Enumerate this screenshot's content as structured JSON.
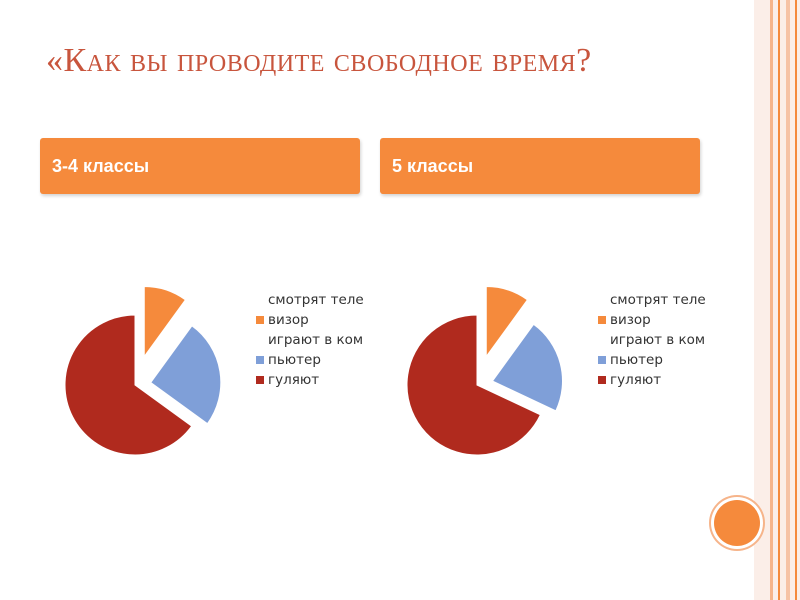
{
  "slide": {
    "title": "«Как вы проводите свободное время?"
  },
  "headers": [
    {
      "label": "3-4 классы"
    },
    {
      "label": "5 классы"
    }
  ],
  "colors": {
    "accent": "#f58a3c",
    "title": "#c8553d",
    "tv": "#f58a3c",
    "computer": "#7f9fd8",
    "walk": "#b02a1e"
  },
  "chart_data": [
    {
      "type": "pie",
      "categories": [
        "смотрят телевизор",
        "играют в компьютер",
        "гуляют"
      ],
      "values": [
        10,
        25,
        65
      ],
      "legend_position": "right",
      "exploded": true
    },
    {
      "type": "pie",
      "categories": [
        "смотрят телевизор",
        "играют в компьютер",
        "гуляют"
      ],
      "values": [
        10,
        22,
        68
      ],
      "legend_position": "right",
      "exploded": true
    }
  ]
}
